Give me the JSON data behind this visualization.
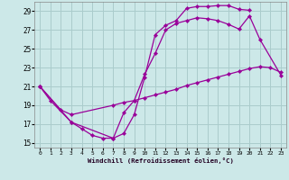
{
  "title": "",
  "xlabel": "Windchill (Refroidissement éolien,°C)",
  "bg_color": "#cce8e8",
  "grid_color": "#aacccc",
  "line_color": "#990099",
  "xlim": [
    -0.5,
    23.5
  ],
  "ylim": [
    14.5,
    30.0
  ],
  "yticks": [
    15,
    17,
    19,
    21,
    23,
    25,
    27,
    29
  ],
  "xticks": [
    0,
    1,
    2,
    3,
    4,
    5,
    6,
    7,
    8,
    9,
    10,
    11,
    12,
    13,
    14,
    15,
    16,
    17,
    18,
    19,
    20,
    21,
    22,
    23
  ],
  "line1_x": [
    0,
    1,
    3,
    4,
    5,
    6,
    7,
    8,
    9,
    10,
    11,
    12,
    13,
    14,
    15,
    16,
    17,
    18,
    19,
    20
  ],
  "line1_y": [
    21.0,
    19.5,
    17.2,
    16.5,
    15.8,
    15.5,
    15.5,
    16.0,
    18.0,
    22.0,
    26.5,
    27.5,
    28.0,
    29.3,
    29.5,
    29.5,
    29.6,
    29.6,
    29.2,
    29.1
  ],
  "line2_x": [
    0,
    3,
    7,
    8,
    9,
    10,
    11,
    12,
    13,
    14,
    15,
    16,
    17,
    18,
    19,
    20,
    21,
    23
  ],
  "line2_y": [
    21.0,
    17.2,
    15.5,
    18.2,
    19.5,
    22.3,
    24.5,
    27.0,
    27.7,
    28.0,
    28.3,
    28.2,
    28.0,
    27.6,
    27.1,
    28.5,
    26.0,
    22.2
  ],
  "line3_x": [
    0,
    2,
    3,
    7,
    8,
    9,
    10,
    11,
    12,
    13,
    14,
    15,
    16,
    17,
    18,
    19,
    20,
    21,
    22,
    23
  ],
  "line3_y": [
    21.0,
    18.5,
    18.0,
    19.0,
    19.3,
    19.5,
    19.8,
    20.1,
    20.4,
    20.7,
    21.1,
    21.4,
    21.7,
    22.0,
    22.3,
    22.6,
    22.9,
    23.1,
    23.0,
    22.5
  ]
}
